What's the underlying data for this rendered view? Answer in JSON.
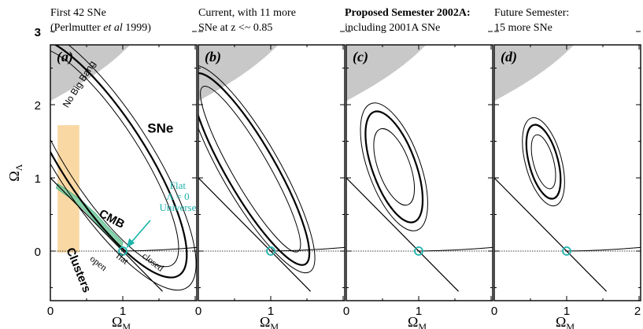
{
  "chart_data": [
    {
      "type": "line",
      "panel_label": "(a)",
      "caption": [
        "First 42 SNe",
        "(Perlmutter et al 1999)"
      ],
      "caption_bold": false,
      "xlabel": "Ω_M",
      "ylabel": "Ω_Λ",
      "xlim": [
        0,
        2
      ],
      "ylim": [
        -0.5,
        3
      ],
      "xticks": [
        "0",
        "1"
      ],
      "yticks": [
        "0",
        "1",
        "2",
        "3"
      ],
      "sne_contour": {
        "center": [
          0.72,
          1.28
        ],
        "tilt_deg": 57,
        "levels": [
          [
            0.5,
            1.75
          ],
          [
            0.58,
            1.92
          ],
          [
            0.66,
            2.12
          ]
        ]
      },
      "flat_line": [
        [
          0,
          1
        ],
        [
          1.55,
          -0.55
        ]
      ],
      "cmb_band": [
        [
          0.08,
          0.86
        ],
        [
          0.25,
          0.74
        ],
        [
          0.45,
          0.58
        ],
        [
          0.62,
          0.4
        ],
        [
          0.8,
          0.2
        ],
        [
          0.98,
          0.02
        ],
        [
          1.0,
          0.12
        ],
        [
          0.8,
          0.32
        ],
        [
          0.62,
          0.52
        ],
        [
          0.42,
          0.7
        ],
        [
          0.24,
          0.83
        ],
        [
          0.1,
          0.92
        ]
      ],
      "clusters_band": [
        0.1,
        0.4
      ],
      "cosmology_point": [
        1,
        0
      ],
      "annotations": {
        "no_big_bang": "No Big Bang",
        "sne": "SNe",
        "cmb": "CMB",
        "clusters": "Clusters",
        "flat_universe": [
          "Flat",
          "Λ = 0",
          "Universe"
        ],
        "open": "open",
        "flat": "flat",
        "closed": "closed"
      }
    },
    {
      "type": "line",
      "panel_label": "(b)",
      "caption": [
        "Current, with 11 more",
        "SNe at z <~ 0.85"
      ],
      "caption_bold": false,
      "xlabel": "Ω_M",
      "xlim": [
        0,
        2
      ],
      "ylim": [
        -0.5,
        3
      ],
      "xticks": [
        "0",
        "1"
      ],
      "sne_contour": {
        "center": [
          0.72,
          1.12
        ],
        "tilt_deg": 60,
        "levels": [
          [
            0.25,
            1.3
          ],
          [
            0.34,
            1.5
          ],
          [
            0.4,
            1.62
          ]
        ]
      },
      "flat_line": [
        [
          0,
          1
        ],
        [
          1.55,
          -0.55
        ]
      ],
      "cosmology_point": [
        1,
        0
      ]
    },
    {
      "type": "line",
      "panel_label": "(c)",
      "caption": [
        "Proposed Semester 2002A:",
        "including 2001A SNe"
      ],
      "caption_bold": true,
      "xlabel": "Ω_M",
      "xlim": [
        0,
        2
      ],
      "ylim": [
        -0.5,
        3
      ],
      "xticks": [
        "0",
        "1"
      ],
      "sne_contour": {
        "center": [
          0.66,
          1.15
        ],
        "tilt_deg": 70,
        "levels": [
          [
            0.22,
            0.55
          ],
          [
            0.3,
            0.8
          ],
          [
            0.36,
            0.92
          ]
        ]
      },
      "flat_line": [
        [
          0,
          1
        ],
        [
          1.55,
          -0.55
        ]
      ],
      "cosmology_point": [
        1,
        0
      ]
    },
    {
      "type": "line",
      "panel_label": "(d)",
      "caption": [
        "Future Semester:",
        "15 more SNe"
      ],
      "caption_bold": false,
      "xlabel": "Ω_M",
      "xlim": [
        0,
        2
      ],
      "ylim": [
        -0.5,
        3
      ],
      "xticks": [
        "0",
        "1",
        "2"
      ],
      "sne_contour": {
        "center": [
          0.68,
          1.22
        ],
        "tilt_deg": 75,
        "levels": [
          [
            0.14,
            0.38
          ],
          [
            0.2,
            0.52
          ],
          [
            0.25,
            0.62
          ]
        ]
      },
      "flat_line": [
        [
          0,
          1
        ],
        [
          1.55,
          -0.55
        ]
      ],
      "cosmology_point": [
        1,
        0
      ]
    }
  ],
  "colors": {
    "no_big_bang": "#c8c8c8",
    "clusters": "#f8d49a",
    "cmb": "#7ccfa4",
    "cmb_edge": "#3aa874",
    "flat_universe": "#1fb4ac",
    "lines": "#000000"
  }
}
